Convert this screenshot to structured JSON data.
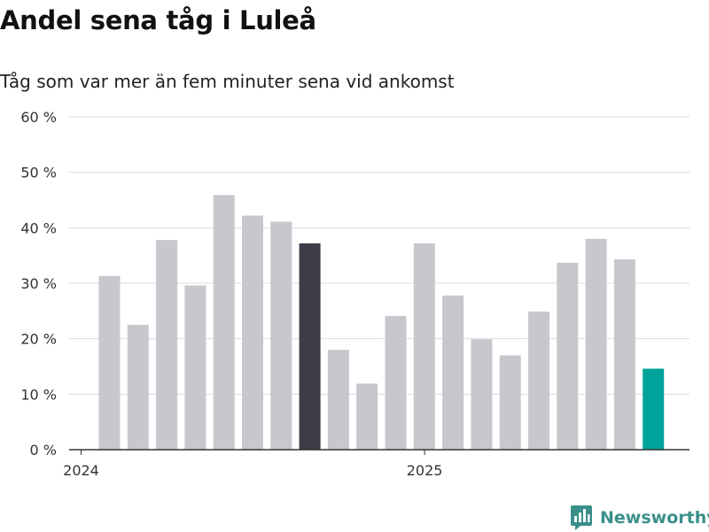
{
  "chart_data": {
    "type": "bar",
    "title": "Andel sena tåg i Luleå",
    "subtitle": "Tåg som var mer än fem minuter sena vid ankomst",
    "xlabel": "",
    "ylabel": "",
    "ylim": [
      0,
      60
    ],
    "yticks": [
      0,
      10,
      20,
      30,
      40,
      50,
      60
    ],
    "ytick_labels": [
      "0 %",
      "10 %",
      "20 %",
      "30 %",
      "40 %",
      "50 %",
      "60 %"
    ],
    "xtick_labels": [
      {
        "label": "2024",
        "at_index": 0
      },
      {
        "label": "2025",
        "at_index": 12
      }
    ],
    "values": [
      31.3,
      22.5,
      37.8,
      29.6,
      45.9,
      42.2,
      41.1,
      37.2,
      18.0,
      11.9,
      24.1,
      37.2,
      27.8,
      19.9,
      17.0,
      24.9,
      33.7,
      38.0,
      34.3,
      14.6
    ],
    "colors": {
      "default": "#c8c7ce",
      "highlight": "#3d3c48",
      "latest": "#00a39a",
      "grid": "#dcdcdc",
      "axis": "#333333"
    },
    "highlight_index": 7,
    "latest_index": 19,
    "grid": true,
    "legend": "none"
  },
  "brand": {
    "name": "Newsworthy",
    "icon": "newsworthy-chart-icon",
    "color": "#3a8f8a"
  }
}
